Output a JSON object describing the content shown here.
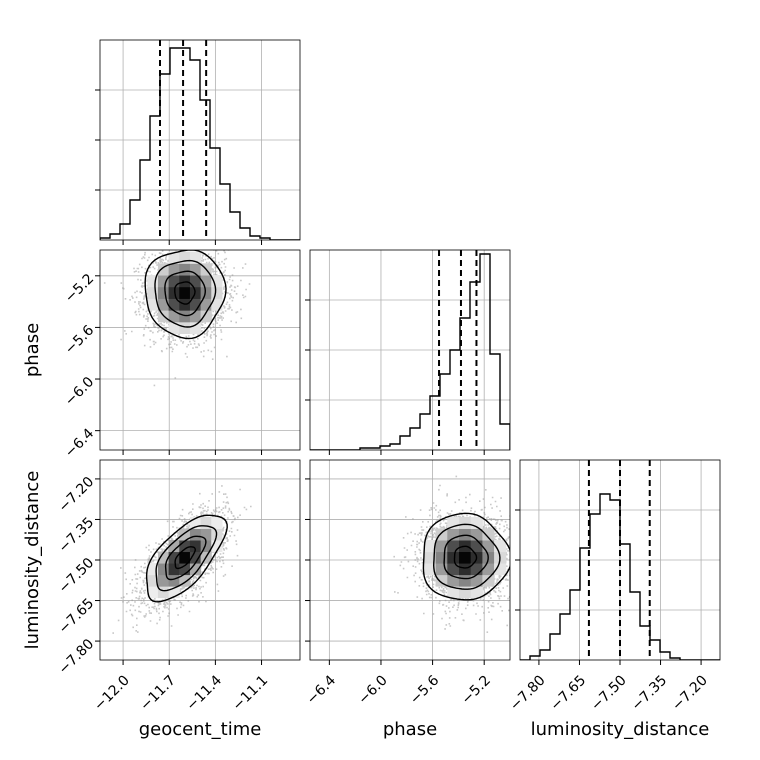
{
  "colors": {
    "hist": "#000000",
    "grid": "#b0b0b0",
    "scatter": "#9a9a9a",
    "contour": "#000000"
  },
  "chart_data": {
    "type": "corner",
    "grid": true,
    "parameters": [
      {
        "name": "geocent_time",
        "label": "geocent_time",
        "range": [
          -12.15,
          -10.85
        ],
        "ticks": [
          -12.0,
          -11.7,
          -11.4,
          -11.1
        ],
        "tick_labels": [
          "−12.0",
          "−11.7",
          "−11.4",
          "−11.1"
        ]
      },
      {
        "name": "phase",
        "label": "phase",
        "range": [
          -6.55,
          -5.0
        ],
        "ticks": [
          -6.4,
          -6.0,
          -5.6,
          -5.2
        ],
        "tick_labels": [
          "−6.4",
          "−6.0",
          "−5.6",
          "−5.2"
        ]
      },
      {
        "name": "luminosity_distance",
        "label": "luminosity_distance",
        "range": [
          -7.87,
          -7.13
        ],
        "ticks": [
          -7.8,
          -7.65,
          -7.5,
          -7.35,
          -7.2
        ],
        "tick_labels": [
          "−7.80",
          "−7.65",
          "−7.50",
          "−7.35",
          "−7.20"
        ]
      }
    ],
    "histograms": [
      {
        "parameter": "geocent_time",
        "quantiles": [
          -11.76,
          -11.61,
          -11.46
        ],
        "counts": [
          1,
          3,
          8,
          20,
          40,
          62,
          83,
          96,
          96,
          90,
          70,
          46,
          28,
          14,
          6,
          2,
          1,
          0,
          0,
          0
        ]
      },
      {
        "parameter": "phase",
        "quantiles": [
          -5.55,
          -5.38,
          -5.26
        ],
        "counts": [
          0,
          0,
          0,
          0,
          0,
          1,
          1,
          2,
          3,
          7,
          11,
          18,
          27,
          38,
          50,
          66,
          84,
          98,
          48,
          13
        ]
      },
      {
        "parameter": "luminosity_distance",
        "quantiles": [
          -7.615,
          -7.5,
          -7.39
        ],
        "counts": [
          0,
          2,
          5,
          13,
          23,
          35,
          56,
          73,
          83,
          80,
          58,
          34,
          17,
          10,
          4,
          1,
          0,
          0,
          0,
          0
        ]
      }
    ],
    "pairs": [
      {
        "x": "geocent_time",
        "y": "phase",
        "mean": [
          -11.6,
          -5.33
        ],
        "std": [
          0.13,
          0.17
        ],
        "rho": 0.0
      },
      {
        "x": "geocent_time",
        "y": "luminosity_distance",
        "mean": [
          -11.6,
          -7.49
        ],
        "std": [
          0.13,
          0.08
        ],
        "rho": 0.65
      },
      {
        "x": "phase",
        "y": "luminosity_distance",
        "mean": [
          -5.35,
          -7.49
        ],
        "std": [
          0.17,
          0.08
        ],
        "rho": 0.0
      }
    ]
  }
}
